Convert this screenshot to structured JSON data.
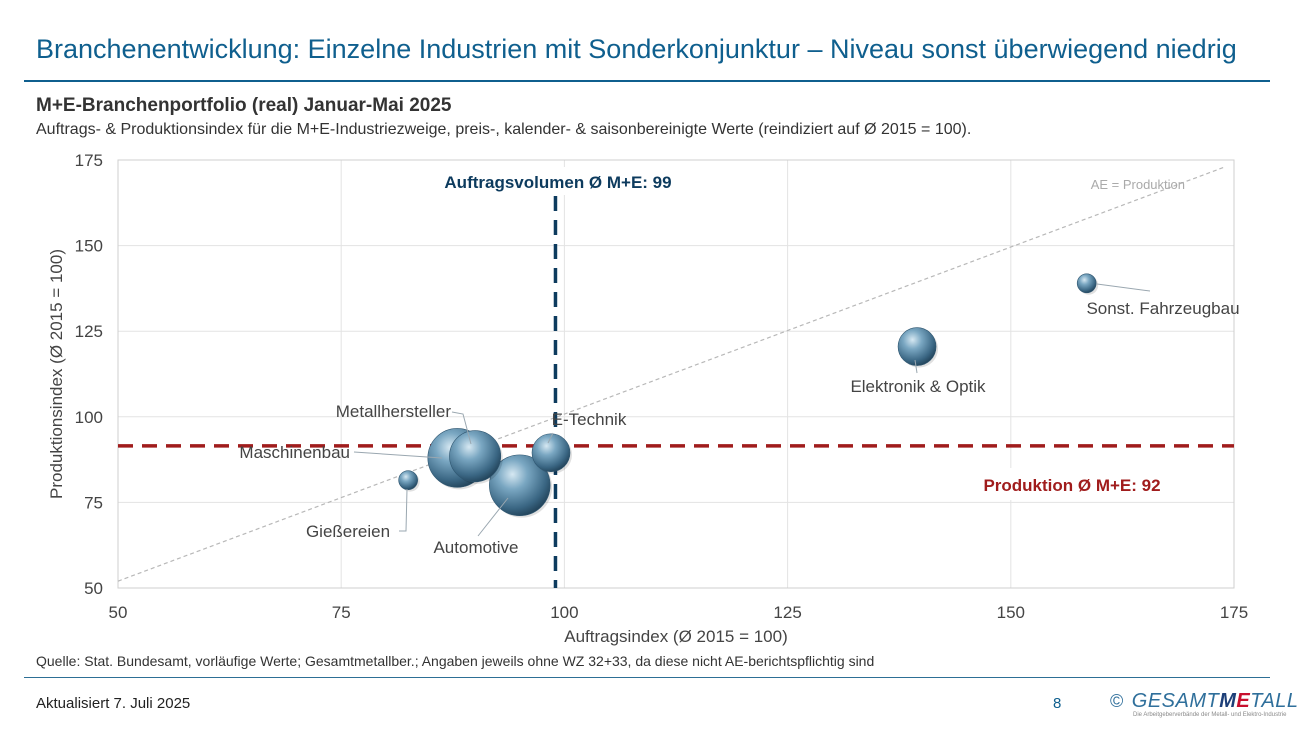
{
  "header": {
    "title": "Branchenentwicklung: Einzelne Industrien mit Sonderkonjunktur – Niveau sonst überwiegend niedrig"
  },
  "chart_header": {
    "subtitle": "M+E-Branchenportfolio (real) Januar-Mai 2025",
    "description": "Auftrags- & Produktionsindex für die M+E-Industriezweige, preis-, kalender- & saisonbereinigte Werte (reindiziert auf Ø 2015 = 100)."
  },
  "chart_data": {
    "type": "scatter",
    "xlabel": "Auftragsindex (Ø 2015 = 100)",
    "ylabel": "Produktionsindex (Ø 2015 = 100)",
    "xlim": [
      50,
      175
    ],
    "ylim": [
      50,
      175
    ],
    "x_ticks": [
      50,
      75,
      100,
      125,
      150,
      175
    ],
    "y_ticks": [
      50,
      75,
      100,
      125,
      150,
      175
    ],
    "grid": true,
    "points": [
      {
        "label": "Sonst. Fahrzeugbau",
        "x": 158.5,
        "y": 139,
        "size": 1
      },
      {
        "label": "Elektronik & Optik",
        "x": 139.5,
        "y": 120.5,
        "size": 2
      },
      {
        "label": "E-Technik",
        "x": 98.5,
        "y": 89.5,
        "size": 2
      },
      {
        "label": "Metallhersteller",
        "x": 90,
        "y": 88.5,
        "size": 2.7
      },
      {
        "label": "Maschinenbau",
        "x": 88,
        "y": 88,
        "size": 3.1
      },
      {
        "label": "Automotive",
        "x": 95,
        "y": 80,
        "size": 3.2
      },
      {
        "label": "Gießereien",
        "x": 82.5,
        "y": 81.5,
        "size": 1
      }
    ],
    "reference_lines": [
      {
        "name": "Auftragsvolumen",
        "orientation": "vertical",
        "value": 99,
        "label": "Auftragsvolumen Ø M+E: 99",
        "color": "#0d3b5e"
      },
      {
        "name": "Produktion",
        "orientation": "horizontal",
        "value": 91.5,
        "label": "Produktion Ø M+E: 92",
        "color": "#a01c1c"
      }
    ],
    "diagonal_label": "AE = Produktion"
  },
  "footer": {
    "source": "Quelle: Stat. Bundesamt, vorläufige Werte; Gesamtmetallber.; Angaben jeweils ohne WZ 32+33, da diese nicht AE-berichtspflichtig sind",
    "updated": "Aktualisiert 7. Juli 2025",
    "page_number": "8",
    "logo_copyright": "©",
    "logo_text_a": "GESAMT",
    "logo_text_m": "M",
    "logo_text_e": "E",
    "logo_text_b": "TALL",
    "logo_tagline": "Die Arbeitgeberverbände der Metall- und Elektro-Industrie"
  }
}
